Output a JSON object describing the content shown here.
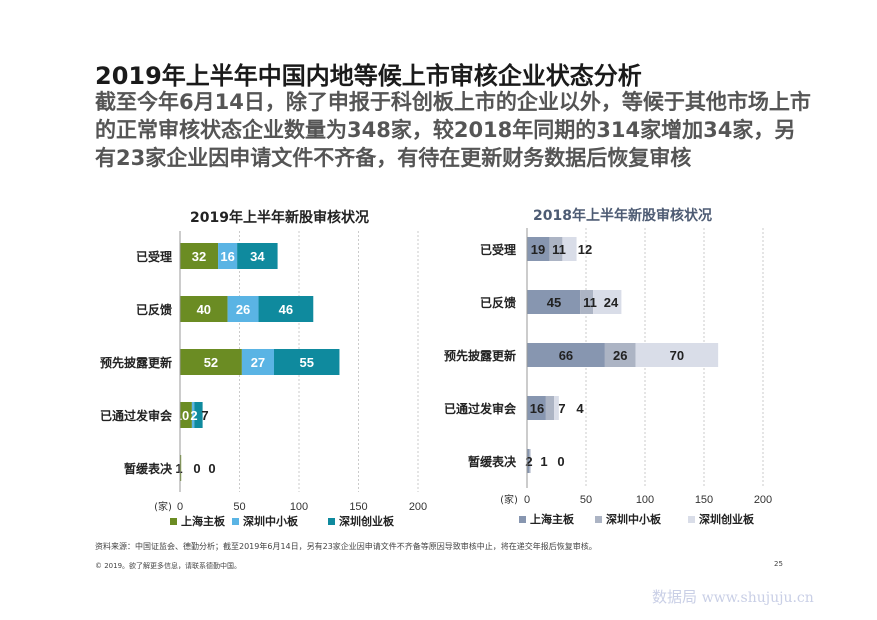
{
  "header": {
    "title": "2019年上半年中国内地等候上市审核企业状态分析",
    "subtitle": "截至今年6月14日，除了申报于科创板上市的企业以外，等候于其他市场上市的正常审核状态企业数量为348家，较2018年同期的314家增加34家，另有23家企业因申请文件不齐备，有待在更新财务数据后恢复审核"
  },
  "chart_data": [
    {
      "type": "bar",
      "orientation": "horizontal",
      "stacked": true,
      "title": "2019年上半年新股审核状况",
      "categories": [
        "已受理",
        "已反馈",
        "预先披露更新",
        "已通过发审会",
        "暂缓表决"
      ],
      "series": [
        {
          "name": "上海主板",
          "values": [
            32,
            40,
            52,
            10,
            1
          ],
          "color": "#6b8c23"
        },
        {
          "name": "深圳中小板",
          "values": [
            16,
            26,
            27,
            2,
            0
          ],
          "color": "#5ab4e4"
        },
        {
          "name": "深圳创业板",
          "values": [
            34,
            46,
            55,
            7,
            0
          ],
          "color": "#0f8a9e"
        }
      ],
      "label_texts": [
        [
          "32",
          "16",
          "34"
        ],
        [
          "40",
          "26",
          "46"
        ],
        [
          "52",
          "27",
          "55"
        ],
        [
          "10",
          "2",
          "7"
        ],
        [
          "1",
          "0",
          "0"
        ]
      ],
      "xlim": [
        0,
        200
      ],
      "xticks": [
        "0",
        "50",
        "100",
        "150",
        "200"
      ],
      "unit": "(家)",
      "grid": true,
      "legend": "bottom"
    },
    {
      "type": "bar",
      "orientation": "horizontal",
      "stacked": true,
      "title": "2018年上半年新股审核状况",
      "categories": [
        "已受理",
        "已反馈",
        "预先披露更新",
        "已通过发审会",
        "暂缓表决"
      ],
      "series": [
        {
          "name": "上海主板",
          "values": [
            19,
            45,
            66,
            16,
            2
          ],
          "color": "#8796b0"
        },
        {
          "name": "深圳中小板",
          "values": [
            11,
            11,
            26,
            7,
            1
          ],
          "color": "#acb4c4"
        },
        {
          "name": "深圳创业板",
          "values": [
            12,
            24,
            70,
            4,
            0
          ],
          "color": "#d9dde8"
        }
      ],
      "label_texts": [
        [
          "19",
          "11",
          "12"
        ],
        [
          "45",
          "11",
          "24"
        ],
        [
          "66",
          "26",
          "70"
        ],
        [
          "16",
          "7",
          "4"
        ],
        [
          "2",
          "1",
          "0"
        ]
      ],
      "xlim": [
        0,
        200
      ],
      "xticks": [
        "0",
        "50",
        "100",
        "150",
        "200"
      ],
      "unit": "(家)",
      "grid": true,
      "legend": "bottom"
    }
  ],
  "footer": {
    "source": "资料来源：中国证监会、德勤分析；截至2019年6月14日，另有23家企业因申请文件不齐备等原因导致审核中止，将在递交年报后恢复审核。",
    "copyright": "© 2019。欲了解更多信息，请联系德勤中国。",
    "page": "25"
  },
  "watermark": {
    "brand": "数据局",
    "url": "www.shujuju.cn"
  }
}
